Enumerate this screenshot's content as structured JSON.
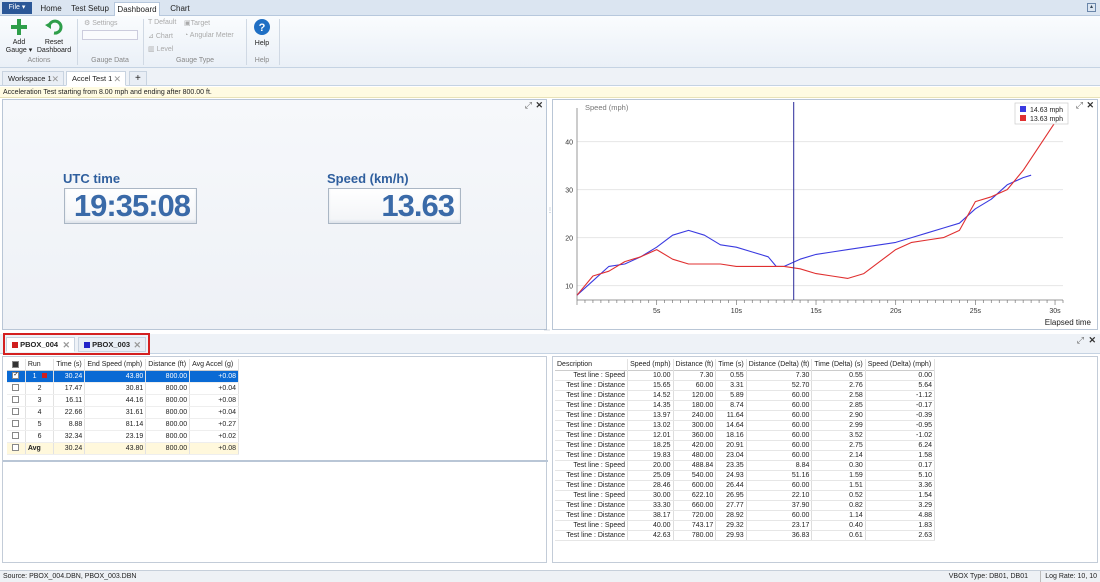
{
  "ribbon_tabs": {
    "file": "File ▾",
    "home": "Home",
    "test_setup": "Test Setup",
    "dashboard": "Dashboard",
    "chart": "Chart"
  },
  "ribbon": {
    "add_gauge": "Add Gauge ▾",
    "reset_dashboard": "Reset Dashboard",
    "actions_label": "Actions",
    "settings": "Settings",
    "gauge_data_label": "Gauge Data",
    "default": "Default",
    "target": "Target",
    "chart": "Chart",
    "angular_meter": "Angular Meter",
    "level": "Level",
    "gauge_type_label": "Gauge Type",
    "help": "Help",
    "help_label": "Help"
  },
  "doc_tabs": [
    {
      "label": "Workspace 1"
    },
    {
      "label": "Accel Test 1"
    }
  ],
  "info_bar": "Acceleration Test starting from 8.00 mph and ending after 800.00 ft.",
  "gauges": {
    "utc_label": "UTC time",
    "utc_value": "19:35:08",
    "speed_label": "Speed (km/h)",
    "speed_value": "13.63"
  },
  "chart_data": {
    "type": "line",
    "ylabel": "Speed (mph)",
    "xlabel": "Elapsed time",
    "x_ticks": [
      "5s",
      "10s",
      "15s",
      "20s",
      "25s",
      "30s"
    ],
    "y_ticks": [
      "10",
      "20",
      "30",
      "40"
    ],
    "xlim": [
      0,
      30.5
    ],
    "ylim": [
      7,
      47
    ],
    "cursor_x": 13.6,
    "legend_position": "top-right",
    "series": [
      {
        "name": "14.63 mph",
        "color": "#3a3ae0",
        "x": [
          0,
          1,
          2,
          3,
          4,
          5,
          6,
          7,
          8,
          9,
          10,
          11,
          12,
          12.5,
          13,
          14,
          15,
          16,
          17,
          18,
          19,
          20,
          21,
          22,
          23,
          24,
          25,
          26,
          27,
          28,
          28.5
        ],
        "y": [
          8,
          11,
          14,
          14.5,
          16,
          18,
          20.5,
          21.5,
          20.5,
          18.5,
          18,
          17,
          16,
          14,
          14,
          15.5,
          16.5,
          17,
          17.5,
          18,
          18.5,
          19,
          20,
          21,
          22,
          23,
          26,
          28,
          31,
          32.5,
          33
        ]
      },
      {
        "name": "13.63 mph",
        "color": "#e03030",
        "x": [
          0,
          1,
          2,
          3,
          4,
          5,
          6,
          7,
          8,
          9,
          10,
          11,
          12,
          13,
          14,
          15,
          16,
          17,
          18,
          19,
          20,
          21,
          22,
          23,
          24,
          25,
          26,
          27,
          28,
          29,
          30
        ],
        "y": [
          8,
          12,
          13,
          15,
          16,
          17.5,
          15.5,
          14.5,
          14.5,
          14.5,
          14,
          14,
          14,
          14,
          13.5,
          12.5,
          12,
          11.5,
          12.5,
          15,
          17.5,
          19,
          19.5,
          20,
          21.5,
          27.5,
          28.5,
          30,
          34,
          39,
          44
        ]
      }
    ]
  },
  "runs": {
    "headers": [
      "Run",
      "Time (s)",
      "End Speed (mph)",
      "Distance (ft)",
      "Avg Accel (g)"
    ],
    "rows": [
      {
        "run": "1",
        "time": "30.24",
        "end_speed": "43.80",
        "distance": "800.00",
        "accel": "+0.08",
        "checked": true
      },
      {
        "run": "2",
        "time": "17.47",
        "end_speed": "30.81",
        "distance": "800.00",
        "accel": "+0.04",
        "checked": false
      },
      {
        "run": "3",
        "time": "16.11",
        "end_speed": "44.16",
        "distance": "800.00",
        "accel": "+0.08",
        "checked": false
      },
      {
        "run": "4",
        "time": "22.66",
        "end_speed": "31.61",
        "distance": "800.00",
        "accel": "+0.04",
        "checked": false
      },
      {
        "run": "5",
        "time": "8.88",
        "end_speed": "81.14",
        "distance": "800.00",
        "accel": "+0.27",
        "checked": false
      },
      {
        "run": "6",
        "time": "32.34",
        "end_speed": "23.19",
        "distance": "800.00",
        "accel": "+0.02",
        "checked": false
      }
    ],
    "avg": {
      "run": "Avg",
      "time": "30.24",
      "end_speed": "43.80",
      "distance": "800.00",
      "accel": "+0.08"
    }
  },
  "file_tabs": [
    {
      "label": "PBOX_004",
      "color": "#d01f1f"
    },
    {
      "label": "PBOX_003",
      "color": "#2323c8"
    }
  ],
  "desc_table": {
    "headers": [
      "Description",
      "Speed (mph)",
      "Distance (ft)",
      "Time (s)",
      "Distance (Delta) (ft)",
      "Time (Delta) (s)",
      "Speed (Delta) (mph)"
    ],
    "rows": [
      [
        "Test line : Speed",
        "10.00",
        "7.30",
        "0.55",
        "7.30",
        "0.55",
        "0.00"
      ],
      [
        "Test line : Distance",
        "15.65",
        "60.00",
        "3.31",
        "52.70",
        "2.76",
        "5.64"
      ],
      [
        "Test line : Distance",
        "14.52",
        "120.00",
        "5.89",
        "60.00",
        "2.58",
        "-1.12"
      ],
      [
        "Test line : Distance",
        "14.35",
        "180.00",
        "8.74",
        "60.00",
        "2.85",
        "-0.17"
      ],
      [
        "Test line : Distance",
        "13.97",
        "240.00",
        "11.64",
        "60.00",
        "2.90",
        "-0.39"
      ],
      [
        "Test line : Distance",
        "13.02",
        "300.00",
        "14.64",
        "60.00",
        "2.99",
        "-0.95"
      ],
      [
        "Test line : Distance",
        "12.01",
        "360.00",
        "18.16",
        "60.00",
        "3.52",
        "-1.02"
      ],
      [
        "Test line : Distance",
        "18.25",
        "420.00",
        "20.91",
        "60.00",
        "2.75",
        "6.24"
      ],
      [
        "Test line : Distance",
        "19.83",
        "480.00",
        "23.04",
        "60.00",
        "2.14",
        "1.58"
      ],
      [
        "Test line : Speed",
        "20.00",
        "488.84",
        "23.35",
        "8.84",
        "0.30",
        "0.17"
      ],
      [
        "Test line : Distance",
        "25.09",
        "540.00",
        "24.93",
        "51.16",
        "1.59",
        "5.10"
      ],
      [
        "Test line : Distance",
        "28.46",
        "600.00",
        "26.44",
        "60.00",
        "1.51",
        "3.36"
      ],
      [
        "Test line : Speed",
        "30.00",
        "622.10",
        "26.95",
        "22.10",
        "0.52",
        "1.54"
      ],
      [
        "Test line : Distance",
        "33.30",
        "660.00",
        "27.77",
        "37.90",
        "0.82",
        "3.29"
      ],
      [
        "Test line : Distance",
        "38.17",
        "720.00",
        "28.92",
        "60.00",
        "1.14",
        "4.88"
      ],
      [
        "Test line : Speed",
        "40.00",
        "743.17",
        "29.32",
        "23.17",
        "0.40",
        "1.83"
      ],
      [
        "Test line : Distance",
        "42.63",
        "780.00",
        "29.93",
        "36.83",
        "0.61",
        "2.63"
      ]
    ]
  },
  "status": {
    "source": "Source: PBOX_004.DBN, PBOX_003.DBN",
    "vbox": "VBOX Type: DB01, DB01",
    "log_rate": "Log Rate: 10, 10"
  }
}
